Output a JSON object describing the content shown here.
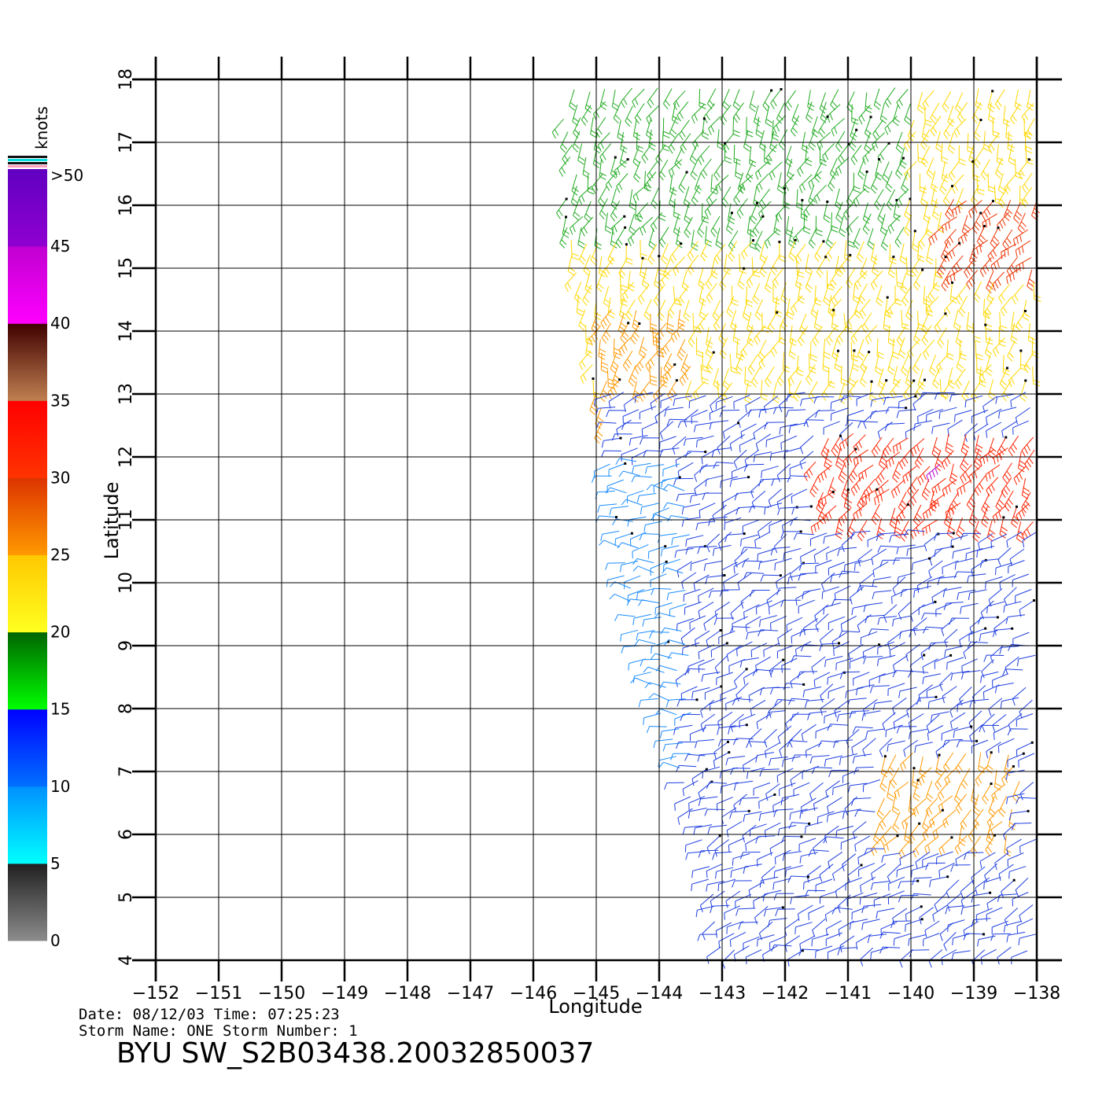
{
  "chart_data": {
    "type": "wind-barb-map",
    "xlabel": "Longitude",
    "ylabel": "Latitude",
    "xlim": [
      -152,
      -138
    ],
    "ylim": [
      4,
      18
    ],
    "x_ticks": [
      "−152",
      "−151",
      "−150",
      "−149",
      "−148",
      "−147",
      "−146",
      "−145",
      "−144",
      "−143",
      "−142",
      "−141",
      "−140",
      "−139",
      "−138"
    ],
    "x_tick_values": [
      -152,
      -151,
      -150,
      -149,
      -148,
      -147,
      -146,
      -145,
      -144,
      -143,
      -142,
      -141,
      -140,
      -139,
      -138
    ],
    "y_ticks": [
      "4",
      "5",
      "6",
      "7",
      "8",
      "9",
      "10",
      "11",
      "12",
      "13",
      "14",
      "15",
      "16",
      "17",
      "18"
    ],
    "y_tick_values": [
      4,
      5,
      6,
      7,
      8,
      9,
      10,
      11,
      12,
      13,
      14,
      15,
      16,
      17,
      18
    ],
    "grid": true,
    "colorbar": {
      "title": "knots",
      "labels": [
        ">50",
        "45",
        "40",
        "35",
        "30",
        "25",
        "20",
        "15",
        "10",
        "5",
        "0"
      ],
      "bands": [
        {
          "from": 0,
          "to": 5,
          "top": "#202020",
          "bottom": "#8c8c8c"
        },
        {
          "from": 5,
          "to": 10,
          "top": "#0090ff",
          "bottom": "#00ffff"
        },
        {
          "from": 10,
          "to": 15,
          "top": "#0000ff",
          "bottom": "#0070ff"
        },
        {
          "from": 15,
          "to": 20,
          "top": "#006400",
          "bottom": "#00ff00"
        },
        {
          "from": 20,
          "to": 25,
          "top": "#ffc800",
          "bottom": "#ffff20"
        },
        {
          "from": 25,
          "to": 30,
          "top": "#dd3300",
          "bottom": "#ff9900"
        },
        {
          "from": 30,
          "to": 35,
          "top": "#ff0000",
          "bottom": "#ff3300"
        },
        {
          "from": 35,
          "to": 40,
          "top": "#400000",
          "bottom": "#c08050"
        },
        {
          "from": 40,
          "to": 45,
          "top": "#c000d0",
          "bottom": "#ff00ff"
        },
        {
          "from": 45,
          "to": 50,
          "top": "#6000c0",
          "bottom": "#9000d0"
        }
      ]
    },
    "swath_edges": [
      {
        "lat": 18,
        "west": -145.8
      },
      {
        "lat": 13,
        "west": -145.0
      },
      {
        "lat": 12,
        "west": -144.8
      },
      {
        "lat": 10,
        "west": -144.5
      },
      {
        "lat": 8,
        "west": -144.0
      },
      {
        "lat": 6,
        "west": -143.3
      },
      {
        "lat": 4,
        "west": -143.0
      }
    ],
    "wind_regions": [
      {
        "name": "north band",
        "lon": [
          -145.5,
          -138
        ],
        "lat": [
          13,
          18
        ],
        "speed_kt": 22,
        "dir_deg": 250,
        "color": "#ffd800"
      },
      {
        "name": "green streaks",
        "lon": [
          -145.5,
          -140
        ],
        "lat": [
          15.5,
          18
        ],
        "speed_kt": 18,
        "dir_deg": 245,
        "color": "#22aa22"
      },
      {
        "name": "northeast strong",
        "lon": [
          -139.5,
          -138
        ],
        "lat": [
          14.8,
          16.2
        ],
        "speed_kt": 31,
        "dir_deg": 230,
        "color": "#ee3300"
      },
      {
        "name": "west edge orange",
        "lon": [
          -145,
          -143.5
        ],
        "lat": [
          12.5,
          14.5
        ],
        "speed_kt": 26,
        "dir_deg": 250,
        "color": "#ff9900"
      },
      {
        "name": "central calm",
        "lon": [
          -144.8,
          -138
        ],
        "lat": [
          4,
          13
        ],
        "speed_kt": 12,
        "dir_deg": 200,
        "color": "#1f3fe0"
      },
      {
        "name": "west light",
        "lon": [
          -144.8,
          -143.5
        ],
        "lat": [
          7,
          12
        ],
        "speed_kt": 9,
        "dir_deg": 180,
        "color": "#1a8cff"
      },
      {
        "name": "storm core",
        "lon": [
          -141.5,
          -138
        ],
        "lat": [
          10.8,
          12.5
        ],
        "speed_kt": 32,
        "dir_deg": 235,
        "color": "#ff2200"
      },
      {
        "name": "storm peak",
        "lon": [
          -139.7,
          -139.3
        ],
        "lat": [
          11.7,
          12.0
        ],
        "speed_kt": 42,
        "dir_deg": 235,
        "color": "#b000d0"
      },
      {
        "name": "southeast band",
        "lon": [
          -140.5,
          -138.3
        ],
        "lat": [
          5.8,
          7.3
        ],
        "speed_kt": 24,
        "dir_deg": 240,
        "color": "#ff9900"
      }
    ]
  },
  "footer": {
    "date_line": "Date: 08/12/03   Time: 07:25:23",
    "storm_line": "Storm  Name:  ONE    Storm  Number:  1",
    "product": "BYU  SW_S2B03438.20032850037"
  }
}
